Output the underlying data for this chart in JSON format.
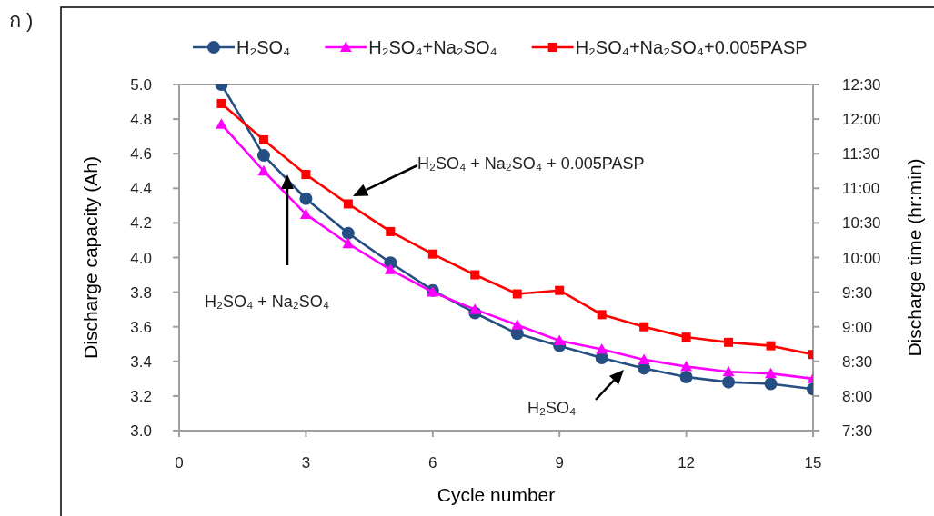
{
  "chart_data": {
    "type": "line",
    "xlabel": "Cycle number",
    "ylabel": "Discharge capacity (Ah)",
    "y2label": "Discharge time (hr:min)",
    "x": [
      1,
      2,
      3,
      4,
      5,
      6,
      7,
      8,
      9,
      10,
      11,
      12,
      13,
      14,
      15
    ],
    "xlim": [
      0,
      15
    ],
    "xticks": [
      0,
      3,
      6,
      9,
      12,
      15
    ],
    "ylim": [
      3.0,
      5.0
    ],
    "yticks": [
      {
        "value": 3.0,
        "label": "3.0"
      },
      {
        "value": 3.2,
        "label": "3.2"
      },
      {
        "value": 3.4,
        "label": "3.4"
      },
      {
        "value": 3.6,
        "label": "3.6"
      },
      {
        "value": 3.8,
        "label": "3.8"
      },
      {
        "value": 4.0,
        "label": "4.0"
      },
      {
        "value": 4.2,
        "label": "4.2"
      },
      {
        "value": 4.4,
        "label": "4.4"
      },
      {
        "value": 4.6,
        "label": "4.6"
      },
      {
        "value": 4.8,
        "label": "4.8"
      },
      {
        "value": 5.0,
        "label": "5.0"
      }
    ],
    "y2lim": [
      7.5,
      12.5
    ],
    "y2ticks": [
      {
        "value": 7.5,
        "label": "7:30"
      },
      {
        "value": 8,
        "label": "8:00"
      },
      {
        "value": 8.5,
        "label": "8:30"
      },
      {
        "value": 9,
        "label": "9:00"
      },
      {
        "value": 9.5,
        "label": "9:30"
      },
      {
        "value": 10,
        "label": "10:00"
      },
      {
        "value": 10.5,
        "label": "10:30"
      },
      {
        "value": 11,
        "label": "11:00"
      },
      {
        "value": 11.5,
        "label": "11:30"
      },
      {
        "value": 12,
        "label": "12:00"
      },
      {
        "value": 12.5,
        "label": "12:30"
      }
    ],
    "legend": "top",
    "series": [
      {
        "name": "H₂SO₄",
        "color": "#254e82",
        "marker": "circle",
        "values": [
          5.0,
          4.59,
          4.34,
          4.14,
          3.97,
          3.81,
          3.68,
          3.56,
          3.49,
          3.42,
          3.36,
          3.31,
          3.28,
          3.27,
          3.24
        ]
      },
      {
        "name": "H₂SO₄+Na₂SO₄",
        "color": "#ff00ff",
        "marker": "triangle",
        "values": [
          4.77,
          4.5,
          4.25,
          4.08,
          3.93,
          3.8,
          3.7,
          3.61,
          3.52,
          3.47,
          3.41,
          3.37,
          3.34,
          3.33,
          3.3
        ]
      },
      {
        "name": "H₂SO₄+Na₂SO₄+0.005PASP",
        "color": "#ff0000",
        "marker": "square",
        "values": [
          4.89,
          4.68,
          4.48,
          4.31,
          4.15,
          4.02,
          3.9,
          3.79,
          3.81,
          3.67,
          3.6,
          3.54,
          3.51,
          3.49,
          3.44
        ]
      }
    ],
    "annotations": [
      "ก )",
      "H₂SO₄ + Na₂SO₄ + 0.005PASP",
      "H₂SO₄ + Na₂SO₄",
      "H₂SO₄"
    ]
  }
}
